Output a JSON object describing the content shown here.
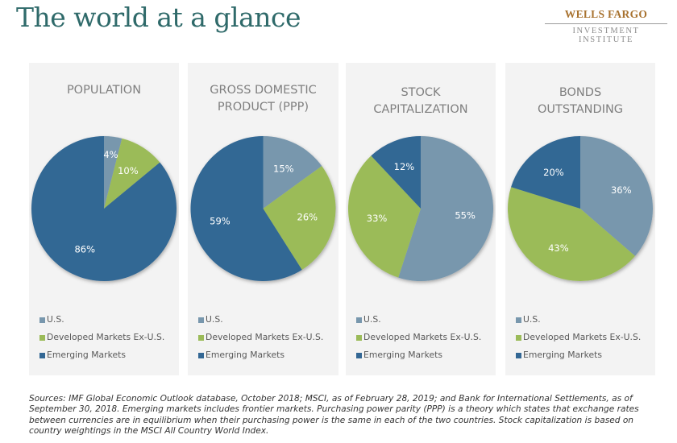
{
  "header": {
    "title": "The world at a glance",
    "brand_name": "WELLS FARGO",
    "brand_sub": "INVESTMENT INSTITUTE"
  },
  "colors": {
    "us": "#7897ad",
    "developed": "#9bbb59",
    "emerging": "#336794",
    "panel_bg": "#f3f3f3",
    "title": "#2f6a6a"
  },
  "legend": [
    {
      "key": "us",
      "label": "U.S."
    },
    {
      "key": "developed",
      "label": "Developed Markets Ex-U.S."
    },
    {
      "key": "emerging",
      "label": "Emerging Markets"
    }
  ],
  "chart_data": [
    {
      "type": "pie",
      "title": "POPULATION",
      "title_lines": [
        "POPULATION"
      ],
      "categories": [
        "U.S.",
        "Developed Markets Ex-U.S.",
        "Emerging Markets"
      ],
      "values": [
        4,
        10,
        86
      ],
      "labels": [
        "4%",
        "10%",
        "86%"
      ],
      "legend_position": "bottom"
    },
    {
      "type": "pie",
      "title": "GROSS DOMESTIC PRODUCT (PPP)",
      "title_lines": [
        "GROSS DOMESTIC",
        "PRODUCT (PPP)"
      ],
      "categories": [
        "U.S.",
        "Developed Markets Ex-U.S.",
        "Emerging Markets"
      ],
      "values": [
        15,
        26,
        59
      ],
      "labels": [
        "15%",
        "26%",
        "59%"
      ],
      "legend_position": "bottom"
    },
    {
      "type": "pie",
      "title": "STOCK CAPITALIZATION",
      "title_lines": [
        "STOCK",
        "CAPITALIZATION"
      ],
      "categories": [
        "U.S.",
        "Developed Markets Ex-U.S.",
        "Emerging Markets"
      ],
      "values": [
        55,
        33,
        12
      ],
      "labels": [
        "55%",
        "33%",
        "12%"
      ],
      "legend_position": "bottom"
    },
    {
      "type": "pie",
      "title": "BONDS OUTSTANDING",
      "title_lines": [
        "BONDS",
        "OUTSTANDING"
      ],
      "categories": [
        "U.S.",
        "Developed Markets Ex-U.S.",
        "Emerging Markets"
      ],
      "values": [
        36,
        43,
        20
      ],
      "labels": [
        "36%",
        "43%",
        "20%"
      ],
      "legend_position": "bottom"
    }
  ],
  "footnote": "Sources: IMF Global Economic Outlook database, October 2018; MSCI, as of February 28, 2019; and Bank for International Settlements, as of September 30, 2018. Emerging markets includes frontier markets. Purchasing power parity (PPP) is a theory which states that exchange rates between currencies are in equilibrium when their purchasing power is the same in each of the two countries. Stock capitalization is based on country weightings in the MSCI All Country World Index."
}
